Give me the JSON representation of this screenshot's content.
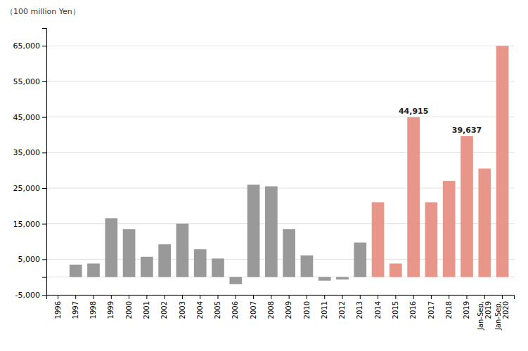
{
  "chart_data": {
    "type": "bar",
    "y_label": "（100 million Yen）",
    "categories": [
      "1996",
      "1997",
      "1998",
      "1999",
      "2000",
      "2001",
      "2002",
      "2003",
      "2004",
      "2005",
      "2006",
      "2007",
      "2008",
      "2009",
      "2010",
      "2011",
      "2012",
      "2013",
      "2014",
      "2015",
      "2016",
      "2017",
      "2018",
      "2019",
      "Jan-Sep,\n2019",
      "Jan-Sep,\n2020"
    ],
    "values": [
      0,
      3500,
      3800,
      16500,
      13500,
      5700,
      9200,
      15000,
      7800,
      5200,
      -2000,
      26000,
      25500,
      13500,
      6100,
      -1000,
      -700,
      9700,
      21000,
      3800,
      44915,
      21000,
      27000,
      39637,
      30500,
      65000
    ],
    "colors": [
      "#999999",
      "#999999",
      "#999999",
      "#999999",
      "#999999",
      "#999999",
      "#999999",
      "#999999",
      "#999999",
      "#999999",
      "#999999",
      "#999999",
      "#999999",
      "#999999",
      "#999999",
      "#999999",
      "#999999",
      "#999999",
      "#e8968a",
      "#e8968a",
      "#e8968a",
      "#e8968a",
      "#e8968a",
      "#e8968a",
      "#e8968a",
      "#e8968a"
    ],
    "annotations": [
      {
        "category": "2016",
        "value": 44915,
        "label": "44,915"
      },
      {
        "category": "2019",
        "value": 39637,
        "label": "39,637"
      }
    ],
    "ylim": [
      -5000,
      70000
    ],
    "yticks": [
      {
        "value": -5000,
        "label": "-5,000"
      },
      {
        "value": 0,
        "label": null
      },
      {
        "value": 5000,
        "label": "5,000"
      },
      {
        "value": 15000,
        "label": "15,000"
      },
      {
        "value": 25000,
        "label": "25,000"
      },
      {
        "value": 35000,
        "label": "35,000"
      },
      {
        "value": 45000,
        "label": "45,000"
      },
      {
        "value": 55000,
        "label": "55,000"
      },
      {
        "value": 65000,
        "label": "65,000"
      }
    ],
    "grid": true
  }
}
